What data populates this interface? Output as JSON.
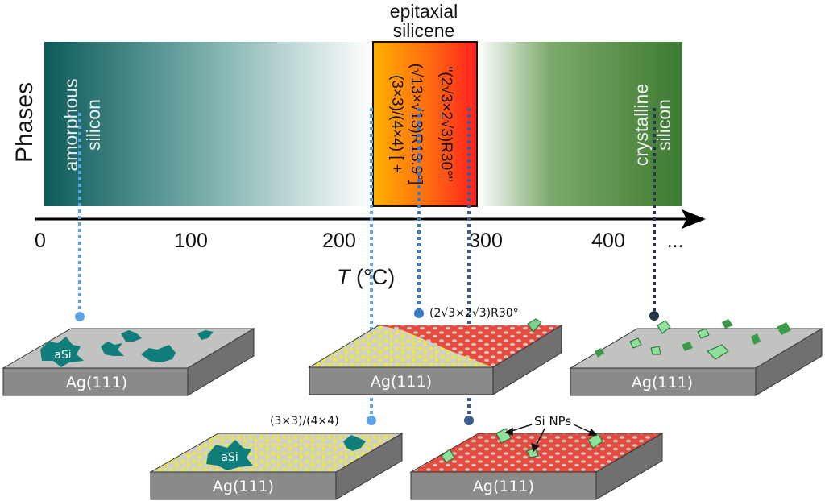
{
  "colors": {
    "amorphous": "#0f5f5e",
    "crystalline": "#3f7d33",
    "epitaxial_top": "#ffb400",
    "epitaxial_bottom": "#ff2a1e",
    "surface_gray": "#bdbdbd",
    "side_gray": "#8a8a8a",
    "dot_light": "#5aa5e8",
    "dot_mid": "#3a78c2",
    "dot_dark": "#26354d"
  },
  "phases_label": "Phases",
  "epitaxial_label_1": "epitaxial",
  "epitaxial_label_2": "silicene",
  "amorphous_1": "amorphous",
  "amorphous_2": "silicon",
  "crystalline_1": "crystalline",
  "crystalline_2": "silicon",
  "recon_line_1": "(3×3)/(4×4) [ +",
  "recon_line_2": "(√13×√13)R13.9°]",
  "recon_line_3": "\"(2√3×2√3)R30°\"",
  "axis": {
    "ticks": [
      "0",
      "100",
      "200",
      "300",
      "400",
      "..."
    ],
    "label_T": "T",
    "label_unit": " (°C)"
  },
  "surfaces": {
    "substrate": "Ag(111)",
    "asi": "aSi",
    "recon_33": "(3×3)/(4×4)",
    "recon_2r3": "(2√3×2√3)R30°",
    "si_nps": "Si NPs"
  }
}
